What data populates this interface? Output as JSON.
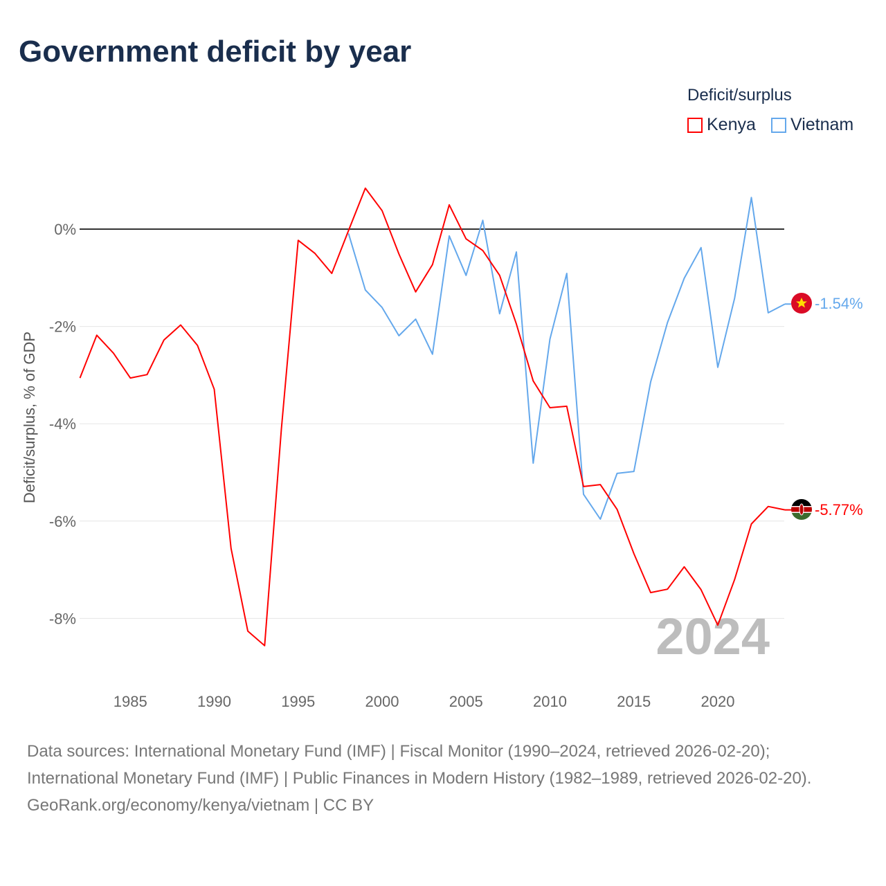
{
  "title": "Government deficit by year",
  "legend": {
    "title": "Deficit/surplus",
    "items": [
      {
        "label": "Kenya",
        "color": "#ff0000"
      },
      {
        "label": "Vietnam",
        "color": "#64a8ec"
      }
    ]
  },
  "footer": {
    "sources": "Data sources: International Monetary Fund (IMF) | Fiscal Monitor (1990–2024, retrieved 2026-02-20); International Monetary Fund (IMF) | Public Finances in Modern History (1982–1989, retrieved 2026-02-20).",
    "credit": "GeoRank.org/economy/kenya/vietnam | CC BY"
  },
  "chart_data": {
    "type": "line",
    "title": "Government deficit by year",
    "xlabel": "",
    "ylabel": "Deficit/surplus, % of GDP",
    "xlim": [
      1982,
      2024
    ],
    "ylim": [
      -9,
      1
    ],
    "yticks": [
      0,
      -2,
      -4,
      -6,
      -8
    ],
    "ytick_labels": [
      "0%",
      "-2%",
      "-4%",
      "-6%",
      "-8%"
    ],
    "xticks": [
      1985,
      1990,
      1995,
      2000,
      2005,
      2010,
      2015,
      2020
    ],
    "xtick_labels": [
      "1985",
      "1990",
      "1995",
      "2000",
      "2005",
      "2010",
      "2015",
      "2020"
    ],
    "watermark_year": "2024",
    "legend_position": "top-right",
    "series": [
      {
        "name": "Kenya",
        "color": "#ff0000",
        "end_label": "-5.77%",
        "x_start": 1982,
        "values": [
          -3.06,
          -2.18,
          -2.55,
          -3.06,
          -2.99,
          -2.28,
          -1.97,
          -2.39,
          -3.29,
          -6.56,
          -8.26,
          -8.56,
          -4.11,
          -0.23,
          -0.5,
          -0.91,
          -0.03,
          0.84,
          0.38,
          -0.51,
          -1.29,
          -0.73,
          0.5,
          -0.2,
          -0.44,
          -0.95,
          -1.95,
          -3.12,
          -3.67,
          -3.64,
          -5.29,
          -5.25,
          -5.76,
          -6.67,
          -7.47,
          -7.4,
          -6.94,
          -7.41,
          -8.14,
          -7.2,
          -6.06,
          -5.7,
          -5.77
        ]
      },
      {
        "name": "Vietnam",
        "color": "#64a8ec",
        "end_label": "-1.54%",
        "x_start": 1998,
        "values": [
          -0.09,
          -1.25,
          -1.61,
          -2.19,
          -1.85,
          -2.57,
          -0.14,
          -0.95,
          0.18,
          -1.74,
          -0.47,
          -4.81,
          -2.26,
          -0.91,
          -5.45,
          -5.96,
          -5.02,
          -4.98,
          -3.14,
          -1.92,
          -1.01,
          -0.38,
          -2.84,
          -1.42,
          0.65,
          -1.72,
          -1.54
        ]
      }
    ]
  }
}
